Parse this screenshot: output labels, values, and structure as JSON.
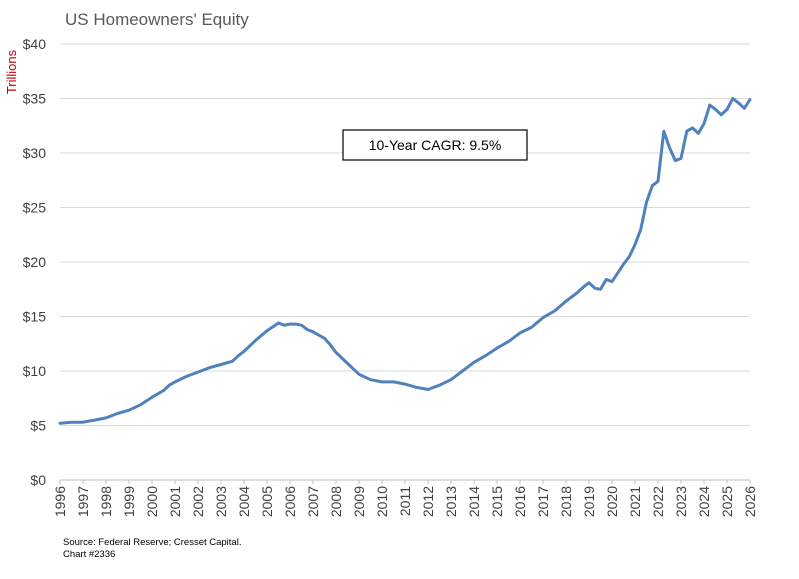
{
  "chart_data": {
    "type": "line",
    "title": "US Homeowners' Equity",
    "ylabel": "Trillions",
    "xlabel": "",
    "ylim": [
      0,
      40
    ],
    "xlim": [
      1996,
      2026
    ],
    "y_ticks": [
      "$0",
      "$5",
      "$10",
      "$15",
      "$20",
      "$25",
      "$30",
      "$35",
      "$40"
    ],
    "y_tick_values": [
      0,
      5,
      10,
      15,
      20,
      25,
      30,
      35,
      40
    ],
    "x_ticks": [
      "1996",
      "1997",
      "1998",
      "1999",
      "2000",
      "2001",
      "2002",
      "2003",
      "2004",
      "2005",
      "2006",
      "2007",
      "2008",
      "2009",
      "2010",
      "2011",
      "2012",
      "2013",
      "2014",
      "2015",
      "2016",
      "2017",
      "2018",
      "2019",
      "2020",
      "2021",
      "2022",
      "2023",
      "2024",
      "2025",
      "2026"
    ],
    "grid": true,
    "legend": "none",
    "annotation": "10-Year CAGR: 9.5%",
    "colors": {
      "line": "#4f81bd",
      "ylabel": "#c00000",
      "grid": "#d9d9d9",
      "title": "#595959"
    },
    "series": [
      {
        "x": [
          1996.0,
          1996.5,
          1997.0,
          1997.25,
          1997.5,
          1998.0,
          1998.5,
          1999.0,
          1999.5,
          2000.0,
          2000.5,
          2000.75,
          2001.0,
          2001.5,
          2002.0,
          2002.5,
          2003.0,
          2003.5,
          2003.75,
          2004.0,
          2004.25,
          2004.5,
          2005.0,
          2005.5,
          2005.75,
          2006.0,
          2006.25,
          2006.5,
          2006.75,
          2007.0,
          2007.5,
          2007.75,
          2008.0,
          2008.5,
          2009.0,
          2009.5,
          2010.0,
          2010.5,
          2010.75,
          2011.0,
          2011.5,
          2011.75,
          2012.0,
          2012.5,
          2013.0,
          2013.5,
          2014.0,
          2014.5,
          2015.0,
          2015.5,
          2016.0,
          2016.5,
          2017.0,
          2017.5,
          2018.0,
          2018.5,
          2018.75,
          2019.0,
          2019.25,
          2019.5,
          2019.75,
          2020.0,
          2020.25,
          2020.5,
          2020.75,
          2021.0,
          2021.25,
          2021.5,
          2021.75,
          2022.0,
          2022.25,
          2022.5,
          2022.75,
          2023.0,
          2023.25,
          2023.5,
          2023.75,
          2024.0,
          2024.25,
          2024.5,
          2024.75,
          2025.0,
          2025.25,
          2025.5,
          2025.75,
          2026.0
        ],
        "y": [
          5.2,
          5.3,
          5.3,
          5.4,
          5.5,
          5.7,
          6.1,
          6.4,
          6.9,
          7.6,
          8.2,
          8.7,
          9.0,
          9.5,
          9.9,
          10.3,
          10.6,
          10.9,
          11.4,
          11.8,
          12.3,
          12.8,
          13.7,
          14.4,
          14.2,
          14.3,
          14.3,
          14.2,
          13.8,
          13.6,
          13.0,
          12.4,
          11.7,
          10.7,
          9.7,
          9.2,
          9.0,
          9.0,
          8.9,
          8.8,
          8.5,
          8.4,
          8.3,
          8.7,
          9.2,
          10.0,
          10.8,
          11.4,
          12.1,
          12.7,
          13.5,
          14.0,
          14.9,
          15.5,
          16.4,
          17.2,
          17.7,
          18.1,
          17.6,
          17.5,
          18.4,
          18.2,
          19.0,
          19.8,
          20.5,
          21.6,
          23.0,
          25.5,
          27.0,
          27.4,
          32.0,
          30.5,
          29.3,
          29.5,
          32.0,
          32.3,
          31.8,
          32.7,
          34.4,
          34.0,
          33.5,
          34.0,
          35.0,
          34.6,
          34.1,
          34.9
        ]
      }
    ]
  },
  "footer": {
    "source": "Source: Federal Reserve; Cresset Capital.",
    "chart_number": "Chart #2336"
  }
}
